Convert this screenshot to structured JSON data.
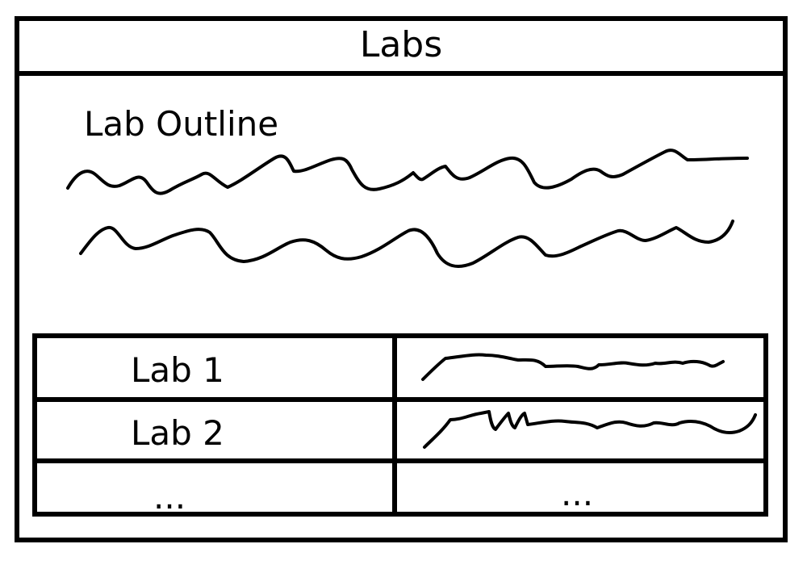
{
  "header": {
    "title": "Labs"
  },
  "outline": {
    "heading": "Lab Outline"
  },
  "labs_table": {
    "rows": [
      {
        "name": "Lab 1",
        "description": ""
      },
      {
        "name": "Lab 2",
        "description": ""
      },
      {
        "name": "...",
        "description": "..."
      }
    ]
  },
  "colors": {
    "ink": "#000000",
    "background": "#ffffff"
  }
}
